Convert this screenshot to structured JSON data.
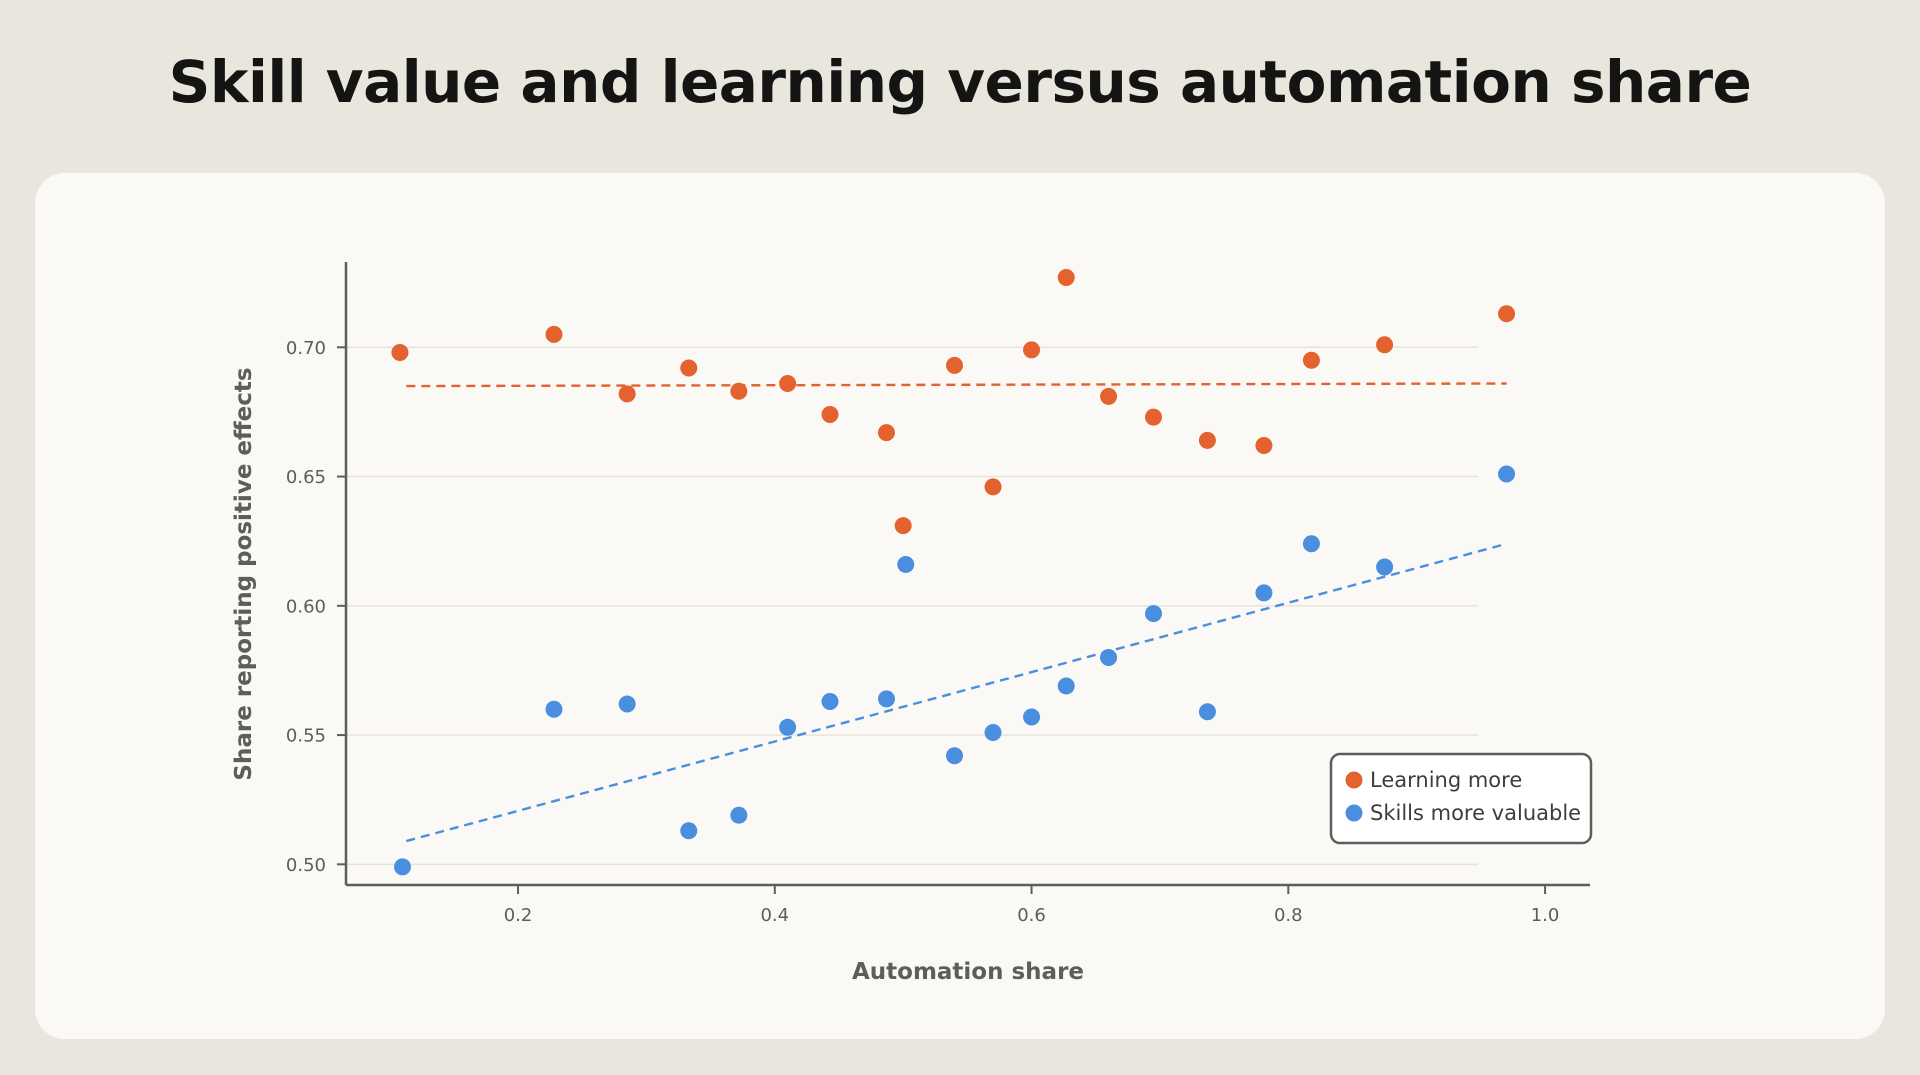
{
  "chart_data": {
    "type": "scatter",
    "title": "Skill value and learning versus automation share",
    "xlabel": "Automation share",
    "ylabel": "Share reporting positive effects",
    "xlim": [
      0.066,
      1.035
    ],
    "ylim": [
      0.492,
      0.733
    ],
    "xticks": [
      0.2,
      0.4,
      0.6,
      0.8,
      1.0
    ],
    "xtick_labels": [
      "0.2",
      "0.4",
      "0.6",
      "0.8",
      "1.0"
    ],
    "yticks": [
      0.5,
      0.55,
      0.6,
      0.65,
      0.7
    ],
    "ytick_labels": [
      "0.50",
      "0.55",
      "0.60",
      "0.65",
      "0.70"
    ],
    "grid": "horizontal",
    "legend_position": "lower-right",
    "series": [
      {
        "name": "Learning more",
        "color": "#e3622e",
        "trend": {
          "x": [
            0.113,
            0.97
          ],
          "y": [
            0.685,
            0.686
          ]
        },
        "points": [
          {
            "x": 0.108,
            "y": 0.698
          },
          {
            "x": 0.228,
            "y": 0.705
          },
          {
            "x": 0.285,
            "y": 0.682
          },
          {
            "x": 0.333,
            "y": 0.692
          },
          {
            "x": 0.372,
            "y": 0.683
          },
          {
            "x": 0.41,
            "y": 0.686
          },
          {
            "x": 0.443,
            "y": 0.674
          },
          {
            "x": 0.487,
            "y": 0.667
          },
          {
            "x": 0.5,
            "y": 0.631
          },
          {
            "x": 0.54,
            "y": 0.693
          },
          {
            "x": 0.57,
            "y": 0.646
          },
          {
            "x": 0.6,
            "y": 0.699
          },
          {
            "x": 0.627,
            "y": 0.727
          },
          {
            "x": 0.66,
            "y": 0.681
          },
          {
            "x": 0.695,
            "y": 0.673
          },
          {
            "x": 0.737,
            "y": 0.664
          },
          {
            "x": 0.781,
            "y": 0.662
          },
          {
            "x": 0.818,
            "y": 0.695
          },
          {
            "x": 0.875,
            "y": 0.701
          },
          {
            "x": 0.97,
            "y": 0.713
          }
        ]
      },
      {
        "name": "Skills more valuable",
        "color": "#4a8ee0",
        "trend": {
          "x": [
            0.113,
            0.97
          ],
          "y": [
            0.509,
            0.624
          ]
        },
        "points": [
          {
            "x": 0.11,
            "y": 0.499
          },
          {
            "x": 0.228,
            "y": 0.56
          },
          {
            "x": 0.285,
            "y": 0.562
          },
          {
            "x": 0.333,
            "y": 0.513
          },
          {
            "x": 0.372,
            "y": 0.519
          },
          {
            "x": 0.41,
            "y": 0.553
          },
          {
            "x": 0.443,
            "y": 0.563
          },
          {
            "x": 0.487,
            "y": 0.564
          },
          {
            "x": 0.502,
            "y": 0.616
          },
          {
            "x": 0.54,
            "y": 0.542
          },
          {
            "x": 0.57,
            "y": 0.551
          },
          {
            "x": 0.6,
            "y": 0.557
          },
          {
            "x": 0.627,
            "y": 0.569
          },
          {
            "x": 0.66,
            "y": 0.58
          },
          {
            "x": 0.695,
            "y": 0.597
          },
          {
            "x": 0.737,
            "y": 0.559
          },
          {
            "x": 0.781,
            "y": 0.605
          },
          {
            "x": 0.818,
            "y": 0.624
          },
          {
            "x": 0.875,
            "y": 0.615
          },
          {
            "x": 0.97,
            "y": 0.651
          }
        ]
      }
    ]
  }
}
